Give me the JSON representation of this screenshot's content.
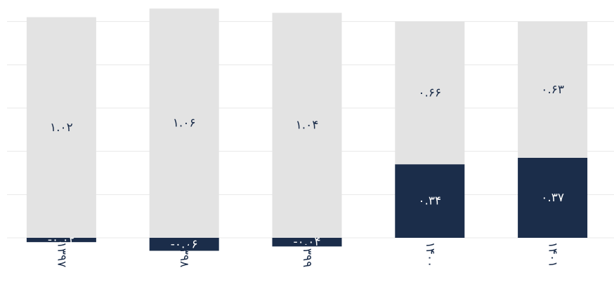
{
  "chart_data": {
    "type": "stacked-bar",
    "categories": [
      "۱۳۹۷",
      "۱۳۹۸",
      "۱۳۹۹",
      "۱۴۰۰",
      "۱۴۰۱"
    ],
    "series": [
      {
        "color": "#1b2d4a",
        "values": [
          -0.02,
          -0.06,
          -0.04,
          0.34,
          0.37
        ],
        "value_labels": [
          "-۰.۰۲",
          "-۰.۰۶",
          "-۰.۰۴",
          "۰.۳۴",
          "۰.۳۷"
        ]
      },
      {
        "color": "#e3e3e3",
        "values": [
          1.02,
          1.06,
          1.04,
          0.66,
          0.63
        ],
        "value_labels": [
          "۱.۰۲",
          "۱.۰۶",
          "۱.۰۴",
          "۰.۶۶",
          "۰.۶۳"
        ]
      }
    ],
    "ylim": [
      -0.12,
      1.08
    ],
    "yticks": [
      0,
      0.2,
      0.4,
      0.6,
      0.8,
      1.0
    ],
    "grid": true
  }
}
